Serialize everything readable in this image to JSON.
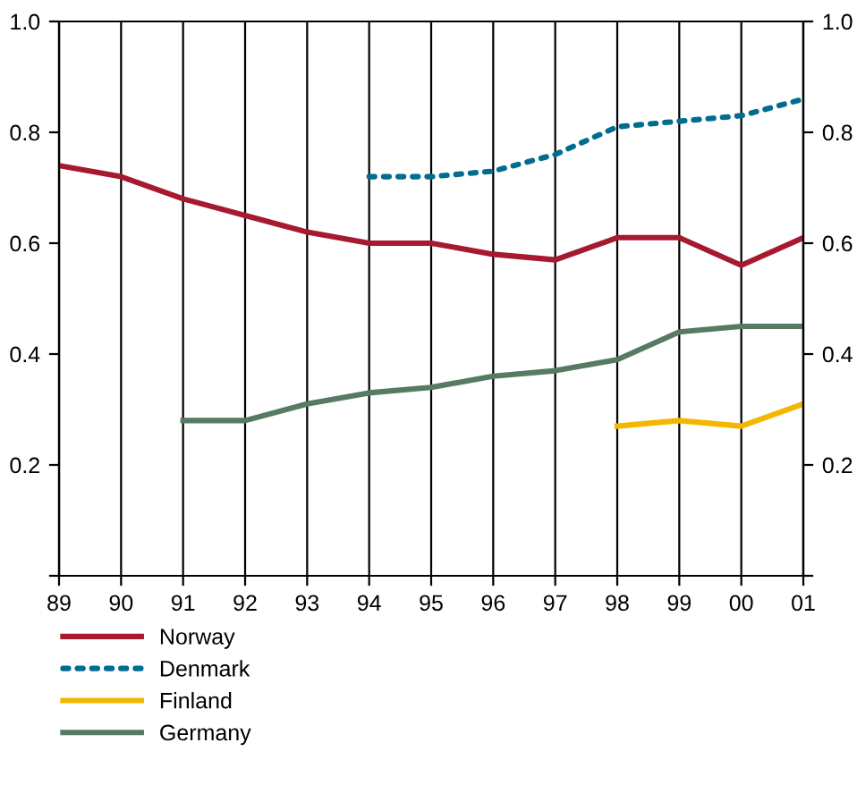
{
  "chart_data": {
    "type": "line",
    "categories": [
      "89",
      "90",
      "91",
      "92",
      "93",
      "94",
      "95",
      "96",
      "97",
      "98",
      "99",
      "00",
      "01"
    ],
    "ylim": [
      0,
      1.0
    ],
    "yticks": [
      {
        "value": 0,
        "label": null
      },
      {
        "value": 0.2,
        "label": "0.2"
      },
      {
        "value": 0.4,
        "label": "0.4"
      },
      {
        "value": 0.6,
        "label": "0.6"
      },
      {
        "value": 0.8,
        "label": "0.8"
      },
      {
        "value": 1.0,
        "label": "1.0"
      }
    ],
    "y2lim": [
      0,
      1.0
    ],
    "y2ticks": [
      {
        "value": 0,
        "label": null
      },
      {
        "value": 0.2,
        "label": "0.2"
      },
      {
        "value": 0.4,
        "label": "0.4"
      },
      {
        "value": 0.6,
        "label": "0.6"
      },
      {
        "value": 0.8,
        "label": "0.8"
      },
      {
        "value": 1.0,
        "label": "1.0"
      }
    ],
    "grid": "x",
    "legend": "bottom",
    "marker": "none",
    "series": [
      {
        "name": "Norway",
        "color": "#a6192e",
        "line_style": "solid",
        "values": [
          0.74,
          0.72,
          0.68,
          0.65,
          0.62,
          0.6,
          0.6,
          0.58,
          0.57,
          0.61,
          0.61,
          0.56,
          0.61
        ]
      },
      {
        "name": "Denmark",
        "color": "#006d8f",
        "line_style": "dotted",
        "values": [
          null,
          null,
          null,
          null,
          null,
          0.72,
          0.72,
          0.73,
          0.76,
          0.81,
          0.82,
          0.83,
          0.86
        ]
      },
      {
        "name": "Finland",
        "color": "#f2b700",
        "line_style": "solid",
        "values": [
          null,
          null,
          null,
          null,
          null,
          null,
          null,
          null,
          null,
          0.27,
          0.28,
          0.27,
          0.31
        ]
      },
      {
        "name": "Germany",
        "color": "#567a62",
        "line_style": "solid",
        "values": [
          null,
          null,
          0.28,
          0.28,
          0.31,
          0.33,
          0.34,
          0.36,
          0.37,
          0.39,
          0.44,
          0.45,
          0.45
        ]
      }
    ]
  }
}
